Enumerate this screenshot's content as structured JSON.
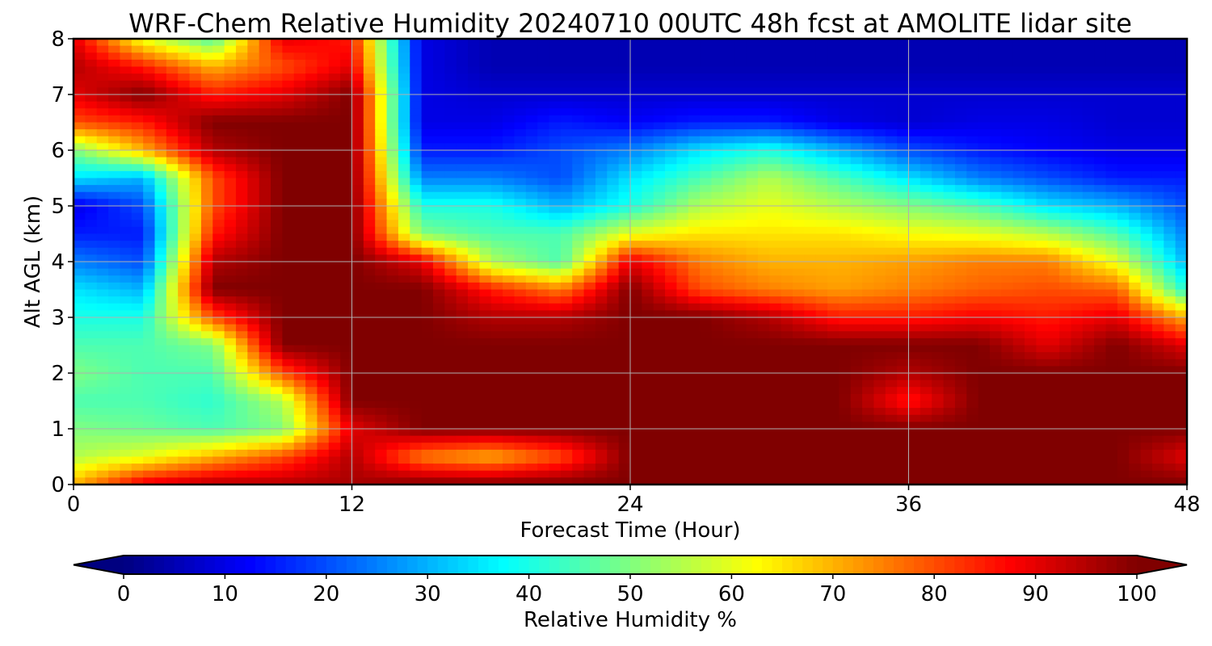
{
  "chart_data": {
    "type": "heatmap",
    "title": "WRF-Chem Relative Humidity 20240710 00UTC 48h fcst at AMOLITE lidar site",
    "xlabel": "Forecast Time (Hour)",
    "ylabel": "Alt AGL (km)",
    "xlim": [
      0,
      48
    ],
    "ylim": [
      0,
      8
    ],
    "x_ticks": [
      "0",
      "12",
      "24",
      "36",
      "48"
    ],
    "y_ticks": [
      "0",
      "1",
      "2",
      "3",
      "4",
      "5",
      "6",
      "7",
      "8"
    ],
    "grid": true,
    "colormap": "jet",
    "colorbar": {
      "label": "Relative Humidity %",
      "range": [
        0,
        100
      ],
      "ticks": [
        "0",
        "10",
        "20",
        "30",
        "40",
        "50",
        "60",
        "70",
        "80",
        "90",
        "100"
      ],
      "extend": "both",
      "orientation": "horizontal"
    },
    "x": [
      0,
      3,
      6,
      9,
      12,
      15,
      18,
      21,
      24,
      27,
      30,
      33,
      36,
      39,
      42,
      45,
      48
    ],
    "y": [
      0,
      0.5,
      1,
      1.5,
      2,
      2.5,
      3,
      3.5,
      4,
      4.5,
      5,
      5.5,
      6,
      6.5,
      7,
      7.5,
      8
    ],
    "z": [
      [
        70,
        90,
        95,
        95,
        96,
        100,
        100,
        100,
        100,
        100,
        100,
        100,
        100,
        100,
        100,
        100,
        100
      ],
      [
        55,
        60,
        70,
        80,
        95,
        75,
        70,
        80,
        100,
        100,
        100,
        100,
        100,
        100,
        100,
        100,
        90
      ],
      [
        50,
        48,
        45,
        50,
        90,
        100,
        100,
        100,
        100,
        100,
        100,
        100,
        100,
        100,
        100,
        100,
        100
      ],
      [
        45,
        45,
        42,
        55,
        100,
        100,
        100,
        100,
        100,
        100,
        100,
        100,
        85,
        100,
        100,
        100,
        100
      ],
      [
        50,
        45,
        45,
        80,
        100,
        100,
        100,
        100,
        100,
        100,
        100,
        100,
        95,
        100,
        100,
        100,
        100
      ],
      [
        45,
        45,
        50,
        100,
        100,
        100,
        100,
        100,
        100,
        100,
        100,
        100,
        100,
        100,
        90,
        100,
        90
      ],
      [
        40,
        40,
        80,
        100,
        100,
        100,
        95,
        95,
        100,
        100,
        95,
        85,
        85,
        88,
        85,
        90,
        70
      ],
      [
        35,
        30,
        100,
        100,
        100,
        100,
        85,
        75,
        100,
        80,
        75,
        72,
        75,
        78,
        80,
        78,
        40
      ],
      [
        25,
        20,
        95,
        100,
        100,
        90,
        55,
        45,
        90,
        75,
        70,
        70,
        72,
        75,
        75,
        60,
        30
      ],
      [
        15,
        15,
        85,
        100,
        100,
        50,
        45,
        45,
        60,
        65,
        65,
        65,
        62,
        60,
        55,
        45,
        25
      ],
      [
        10,
        20,
        80,
        100,
        100,
        40,
        40,
        30,
        40,
        55,
        60,
        55,
        50,
        45,
        35,
        30,
        20
      ],
      [
        35,
        30,
        80,
        100,
        100,
        25,
        25,
        20,
        35,
        45,
        55,
        45,
        35,
        25,
        20,
        15,
        15
      ],
      [
        50,
        70,
        95,
        100,
        100,
        15,
        15,
        20,
        25,
        35,
        40,
        30,
        20,
        15,
        12,
        10,
        10
      ],
      [
        80,
        85,
        100,
        100,
        100,
        10,
        10,
        15,
        12,
        15,
        15,
        10,
        8,
        10,
        10,
        8,
        8
      ],
      [
        90,
        100,
        85,
        90,
        100,
        10,
        8,
        8,
        8,
        8,
        8,
        8,
        8,
        8,
        8,
        8,
        8
      ],
      [
        95,
        85,
        70,
        80,
        90,
        10,
        5,
        5,
        5,
        5,
        5,
        5,
        5,
        5,
        5,
        5,
        5
      ],
      [
        90,
        60,
        45,
        90,
        85,
        10,
        5,
        5,
        5,
        5,
        5,
        5,
        5,
        5,
        5,
        5,
        5
      ]
    ]
  }
}
